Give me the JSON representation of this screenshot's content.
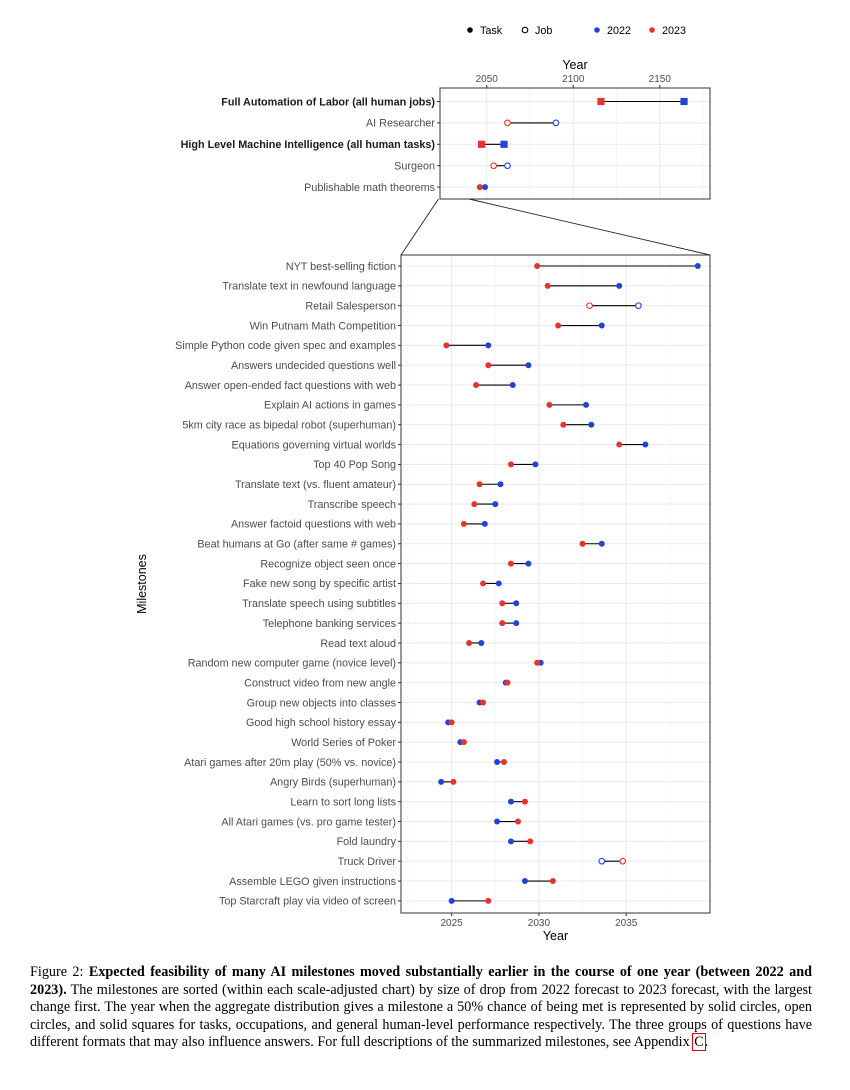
{
  "legend": {
    "items": [
      {
        "label": "Task",
        "marker": "filled-circle",
        "color": "#000000"
      },
      {
        "label": "Job",
        "marker": "open-circle",
        "color": "#000000"
      },
      {
        "label": "2022",
        "marker": "filled-circle",
        "color": "#2343d6"
      },
      {
        "label": "2023",
        "marker": "filled-circle",
        "color": "#e8332a"
      }
    ]
  },
  "colors": {
    "y2022": "#2343d6",
    "y2023": "#e8332a",
    "connector": "#000000",
    "grid": "#ebebeb"
  },
  "chart_data": [
    {
      "type": "scatter",
      "subtype": "dumbbell",
      "xlabel": "Year",
      "x_axis_position": "top",
      "xlim": [
        2023,
        2179
      ],
      "xticks": [
        2050,
        2100,
        2150
      ],
      "series_names": [
        "2022",
        "2023"
      ],
      "milestones": [
        {
          "label": "Full Automation of Labor (all human jobs)",
          "bold": true,
          "marker": "square",
          "y2022": 2164,
          "y2023": 2116
        },
        {
          "label": "AI Researcher",
          "bold": false,
          "marker": "open-circle",
          "y2022": 2090,
          "y2023": 2062
        },
        {
          "label": "High Level Machine Intelligence (all human tasks)",
          "bold": true,
          "marker": "square",
          "y2022": 2060,
          "y2023": 2047
        },
        {
          "label": "Surgeon",
          "bold": false,
          "marker": "open-circle",
          "y2022": 2062,
          "y2023": 2054
        },
        {
          "label": "Publishable math theorems",
          "bold": false,
          "marker": "filled-circle",
          "y2022": 2049,
          "y2023": 2046
        }
      ]
    },
    {
      "type": "scatter",
      "subtype": "dumbbell",
      "xlabel": "Year",
      "ylabel": "Milestones",
      "x_axis_position": "bottom",
      "xlim": [
        2022.1,
        2039.8
      ],
      "xticks": [
        2025,
        2030,
        2035
      ],
      "series_names": [
        "2022",
        "2023"
      ],
      "milestones": [
        {
          "label": "NYT best-selling fiction",
          "marker": "filled-circle",
          "y2022": 2039.1,
          "y2023": 2029.9
        },
        {
          "label": "Translate text in newfound language",
          "marker": "filled-circle",
          "y2022": 2034.6,
          "y2023": 2030.5
        },
        {
          "label": "Retail Salesperson",
          "marker": "open-circle",
          "y2022": 2035.7,
          "y2023": 2032.9
        },
        {
          "label": "Win Putnam Math Competition",
          "marker": "filled-circle",
          "y2022": 2033.6,
          "y2023": 2031.1
        },
        {
          "label": "Simple Python code given spec and examples",
          "marker": "filled-circle",
          "y2022": 2027.1,
          "y2023": 2024.7
        },
        {
          "label": "Answers undecided questions well",
          "marker": "filled-circle",
          "y2022": 2029.4,
          "y2023": 2027.1
        },
        {
          "label": "Answer open-ended fact questions with web",
          "marker": "filled-circle",
          "y2022": 2028.5,
          "y2023": 2026.4
        },
        {
          "label": "Explain AI actions in games",
          "marker": "filled-circle",
          "y2022": 2032.7,
          "y2023": 2030.6
        },
        {
          "label": "5km city race as bipedal robot (superhuman)",
          "marker": "filled-circle",
          "y2022": 2033.0,
          "y2023": 2031.4
        },
        {
          "label": "Equations governing virtual worlds",
          "marker": "filled-circle",
          "y2022": 2036.1,
          "y2023": 2034.6
        },
        {
          "label": "Top 40 Pop Song",
          "marker": "filled-circle",
          "y2022": 2029.8,
          "y2023": 2028.4
        },
        {
          "label": "Translate text (vs. fluent amateur)",
          "marker": "filled-circle",
          "y2022": 2027.8,
          "y2023": 2026.6
        },
        {
          "label": "Transcribe speech",
          "marker": "filled-circle",
          "y2022": 2027.5,
          "y2023": 2026.3
        },
        {
          "label": "Answer factoid questions with web",
          "marker": "filled-circle",
          "y2022": 2026.9,
          "y2023": 2025.7
        },
        {
          "label": "Beat humans at Go (after same # games)",
          "marker": "filled-circle",
          "y2022": 2033.6,
          "y2023": 2032.5
        },
        {
          "label": "Recognize object seen once",
          "marker": "filled-circle",
          "y2022": 2029.4,
          "y2023": 2028.4
        },
        {
          "label": "Fake new song by specific artist",
          "marker": "filled-circle",
          "y2022": 2027.7,
          "y2023": 2026.8
        },
        {
          "label": "Translate speech using subtitles",
          "marker": "filled-circle",
          "y2022": 2028.7,
          "y2023": 2027.9
        },
        {
          "label": "Telephone banking services",
          "marker": "filled-circle",
          "y2022": 2028.7,
          "y2023": 2027.9
        },
        {
          "label": "Read text aloud",
          "marker": "filled-circle",
          "y2022": 2026.7,
          "y2023": 2026.0
        },
        {
          "label": "Random new computer game (novice level)",
          "marker": "filled-circle",
          "y2022": 2030.1,
          "y2023": 2029.9
        },
        {
          "label": "Construct video from new angle",
          "marker": "filled-circle",
          "y2022": 2028.1,
          "y2023": 2028.2
        },
        {
          "label": "Group new objects into classes",
          "marker": "filled-circle",
          "y2022": 2026.6,
          "y2023": 2026.8
        },
        {
          "label": "Good high school history essay",
          "marker": "filled-circle",
          "y2022": 2024.8,
          "y2023": 2025.0
        },
        {
          "label": "World Series of Poker",
          "marker": "filled-circle",
          "y2022": 2025.5,
          "y2023": 2025.7
        },
        {
          "label": "Atari games after 20m play (50% vs. novice)",
          "marker": "filled-circle",
          "y2022": 2027.6,
          "y2023": 2028.0
        },
        {
          "label": "Angry Birds (superhuman)",
          "marker": "filled-circle",
          "y2022": 2024.4,
          "y2023": 2025.1
        },
        {
          "label": "Learn to sort long lists",
          "marker": "filled-circle",
          "y2022": 2028.4,
          "y2023": 2029.2
        },
        {
          "label": "All Atari games (vs. pro game tester)",
          "marker": "filled-circle",
          "y2022": 2027.6,
          "y2023": 2028.8
        },
        {
          "label": "Fold laundry",
          "marker": "filled-circle",
          "y2022": 2028.4,
          "y2023": 2029.5
        },
        {
          "label": "Truck Driver",
          "marker": "open-circle",
          "y2022": 2033.6,
          "y2023": 2034.8
        },
        {
          "label": "Assemble LEGO given instructions",
          "marker": "filled-circle",
          "y2022": 2029.2,
          "y2023": 2030.8
        },
        {
          "label": "Top Starcraft play via video of screen",
          "marker": "filled-circle",
          "y2022": 2025.0,
          "y2023": 2027.1
        }
      ]
    }
  ],
  "caption": {
    "figure_label": "Figure 2:",
    "bold_text": "Expected feasibility of many AI milestones moved substantially earlier in the course of one year (between 2022 and 2023).",
    "body_text": "The milestones are sorted (within each scale-adjusted chart) by size of drop from 2022 forecast to 2023 forecast, with the largest change first. The year when the aggregate distribution gives a milestone a 50% chance of being met is represented by solid circles, open circles, and solid squares for tasks, occupations, and general human-level performance respectively. The three groups of questions have different formats that may also influence answers. For full descriptions of the summarized milestones, see Appendix",
    "appendix_link": "C",
    "end_text": "."
  }
}
